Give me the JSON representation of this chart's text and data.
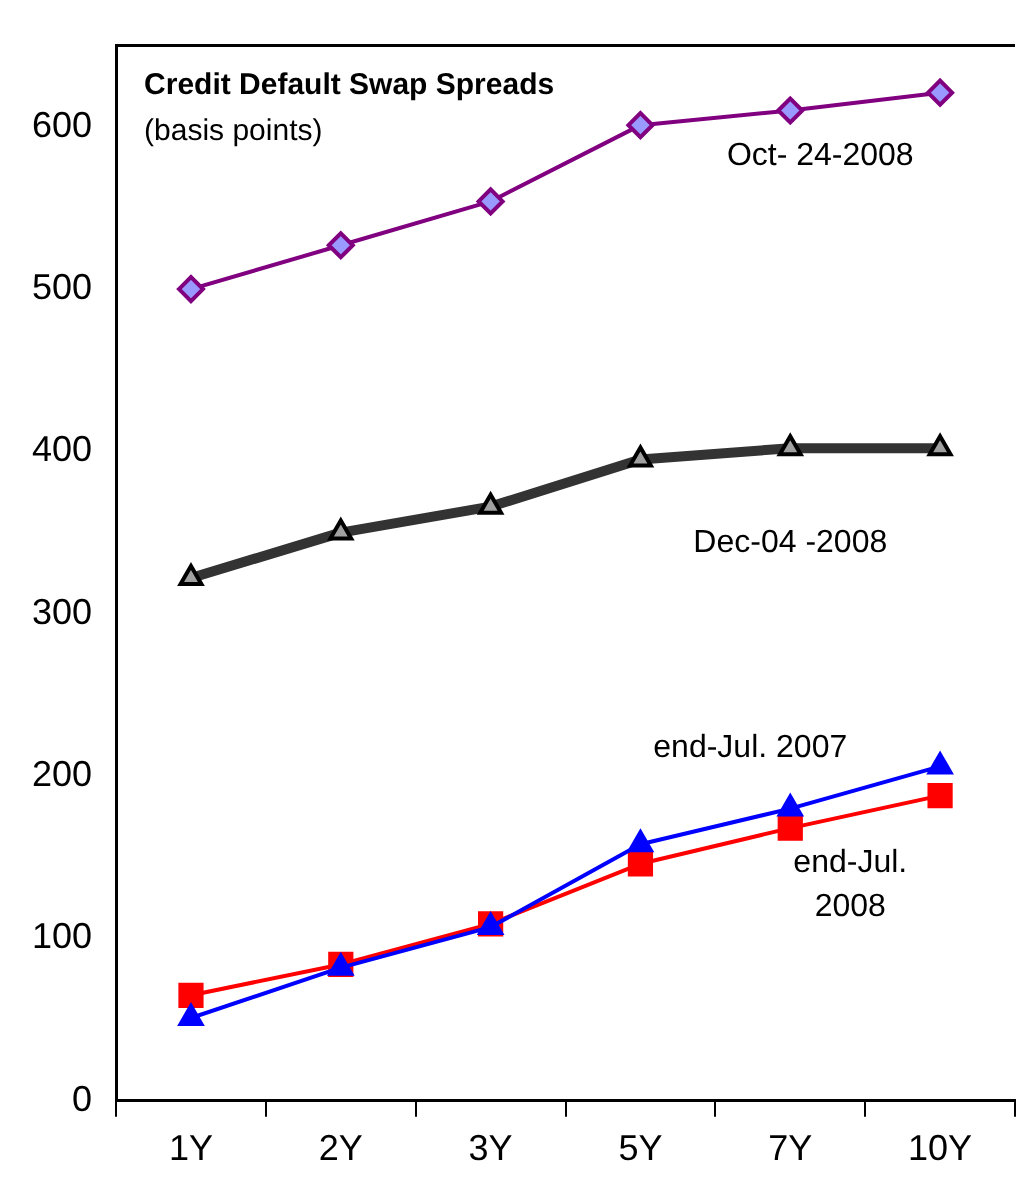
{
  "chart_data": {
    "type": "line",
    "title": "Credit Default Swap Spreads",
    "subtitle": "(basis points)",
    "categories": [
      "1Y",
      "2Y",
      "3Y",
      "5Y",
      "7Y",
      "10Y"
    ],
    "series": [
      {
        "name": "Oct- 24-2008",
        "color": "#800080",
        "marker": "diamond",
        "values": [
          500,
          527,
          554,
          601,
          610,
          621
        ]
      },
      {
        "name": "Dec-04 -2008",
        "color": "#333333",
        "marker": "triangle",
        "values": [
          322,
          350,
          366,
          395,
          402,
          402
        ]
      },
      {
        "name": "end-Jul. 2007",
        "color": "#0000ff",
        "marker": "triangle",
        "values": [
          51,
          82,
          107,
          158,
          180,
          206
        ]
      },
      {
        "name": "end-Jul. 2008",
        "color": "#ff0000",
        "marker": "square",
        "values": [
          65,
          84,
          109,
          146,
          168,
          188
        ]
      }
    ],
    "ylim": [
      0,
      650
    ],
    "yticks": [
      0,
      100,
      200,
      300,
      400,
      500,
      600
    ],
    "grid": false,
    "legend": false
  }
}
